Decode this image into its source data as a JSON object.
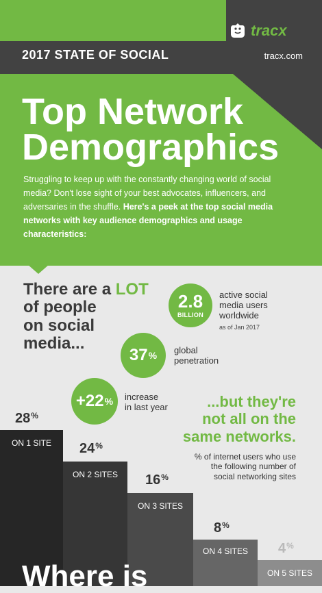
{
  "brand": {
    "logo_text": "tracx",
    "site": "tracx.com",
    "accent": "#72b944",
    "dark": "#424242",
    "light_bg": "#e9e9e9"
  },
  "header": {
    "headline": "2017 STATE OF SOCIAL"
  },
  "hero": {
    "title_line1": "Top Network",
    "title_line2": "Demographics",
    "intro_part1": "Struggling to keep up with the constantly changing world of social media? Don't lose sight of your best advocates, influencers, and adversaries in the shuffle.",
    "intro_part2": "Here's a peek at the top social media networks with key audience demographics and usage characteristics:"
  },
  "lot": {
    "line1_a": "There are a ",
    "line1_b": "LOT",
    "line2": "of people",
    "line3": "on social",
    "line4": "media..."
  },
  "stats": [
    {
      "value": "2.8",
      "unit": "BILLION",
      "text1": "active social",
      "text2": "media users",
      "text3": "worldwide",
      "note": "as of Jan 2017"
    },
    {
      "value": "37",
      "unit": "%",
      "text1": "global",
      "text2": "penetration"
    },
    {
      "value": "+22",
      "unit": "%",
      "text1": "increase",
      "text2": "in last year"
    }
  ],
  "but": {
    "line1": "...but they're",
    "line2": "not all on the",
    "line3": "same networks.",
    "sub1": "% of internet users who use",
    "sub2": "the following number of",
    "sub3": "social networking sites"
  },
  "chart_data": {
    "type": "bar",
    "categories": [
      "ON 1 SITE",
      "ON 2 SITES",
      "ON 3 SITES",
      "ON 4 SITES",
      "ON 5 SITES"
    ],
    "values": [
      28,
      24,
      16,
      8,
      4
    ],
    "value_labels": [
      "28",
      "24",
      "16",
      "8",
      "4"
    ],
    "unit": "%",
    "colors": [
      "#262626",
      "#363636",
      "#4a4a4a",
      "#666666",
      "#8d8d8d"
    ]
  },
  "bottom": {
    "title_partial": "Where is"
  }
}
